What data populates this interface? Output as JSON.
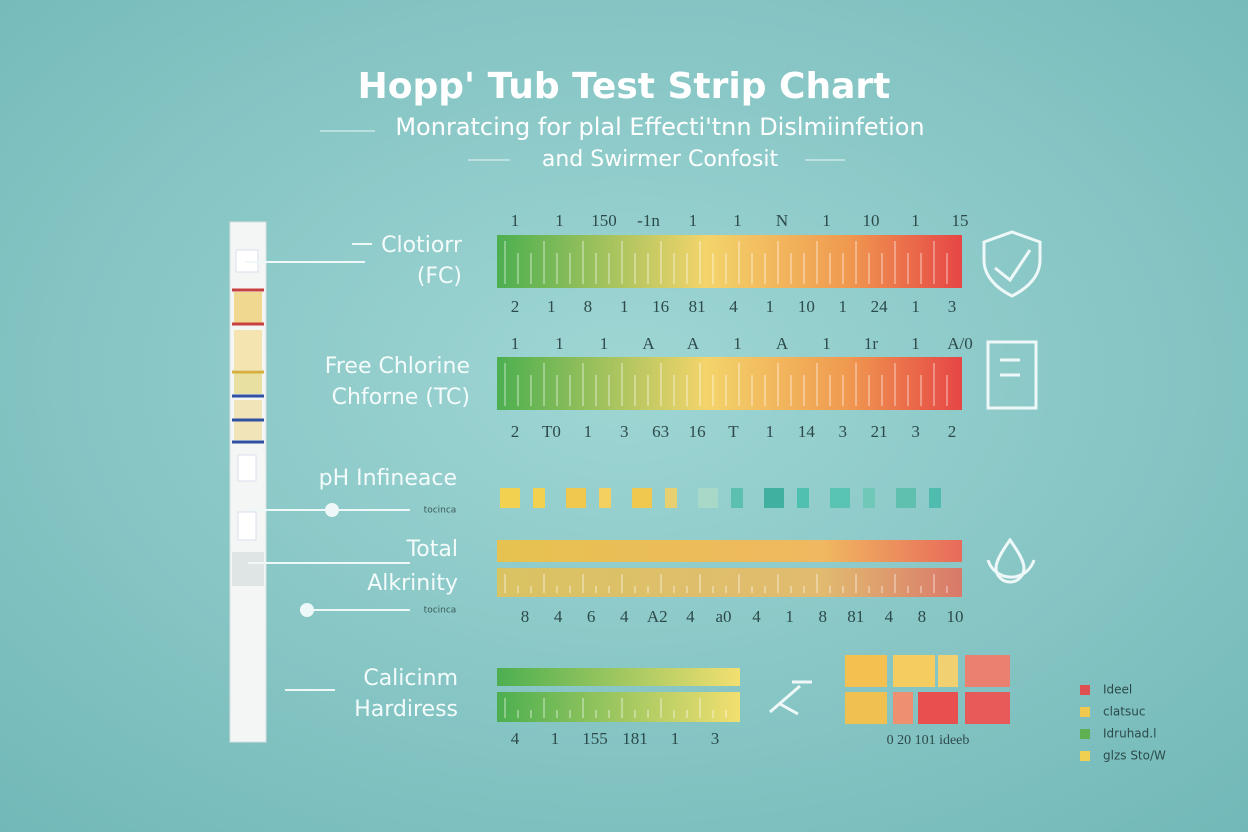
{
  "header": {
    "title": "Hopp' Tub Test Strip Chart",
    "subtitle_lines": [
      "Monratcing for plal Effecti'tnn Dislmiinfetion",
      "and Swirmer Confosit"
    ]
  },
  "rows": [
    {
      "label_lines": [
        "Clotiorr",
        "(FC)"
      ],
      "top_scale": [
        "1",
        "1",
        "150",
        "-1n",
        "1",
        "1",
        "N",
        "1",
        "10",
        "1",
        "15"
      ],
      "bottom_scale": [
        "2",
        "1",
        "8",
        "1",
        "16",
        "81",
        "4",
        "1",
        "10",
        "1",
        "24",
        "1",
        "3"
      ]
    },
    {
      "label_lines": [
        "Free Chlorine",
        "Chforne (TC)"
      ],
      "top_scale": [
        "1",
        "1",
        "1",
        "A",
        "A",
        "1",
        "A",
        "1",
        "1r",
        "1",
        "A/0"
      ],
      "bottom_scale": [
        "2",
        "T0",
        "1",
        "3",
        "63",
        "16",
        "T",
        "1",
        "14",
        "3",
        "21",
        "3",
        "2"
      ]
    },
    {
      "label_lines": [
        "pH Infineace"
      ],
      "note": "tocinca"
    },
    {
      "label_lines": [
        "Total",
        "Alkrinity"
      ],
      "note": "tocinca",
      "bottom_scale": [
        "8",
        "4",
        "6",
        "4",
        "A2",
        "4",
        "a0",
        "4",
        "1",
        "8",
        "81",
        "4",
        "8",
        "10"
      ]
    },
    {
      "label_lines": [
        "Calicinm",
        "Hardiress"
      ],
      "bottom_scale": [
        "4",
        "1",
        "155",
        "181",
        "1",
        "3"
      ],
      "side_scale": "0 20 101 ideeb"
    }
  ],
  "legend": [
    {
      "label": "Ideel",
      "color": "#e05050"
    },
    {
      "label": "clatsuc",
      "color": "#f0c850"
    },
    {
      "label": "Idruhad.l",
      "color": "#5fb050"
    },
    {
      "label": "glzs Sto/W",
      "color": "#f0d050"
    }
  ]
}
